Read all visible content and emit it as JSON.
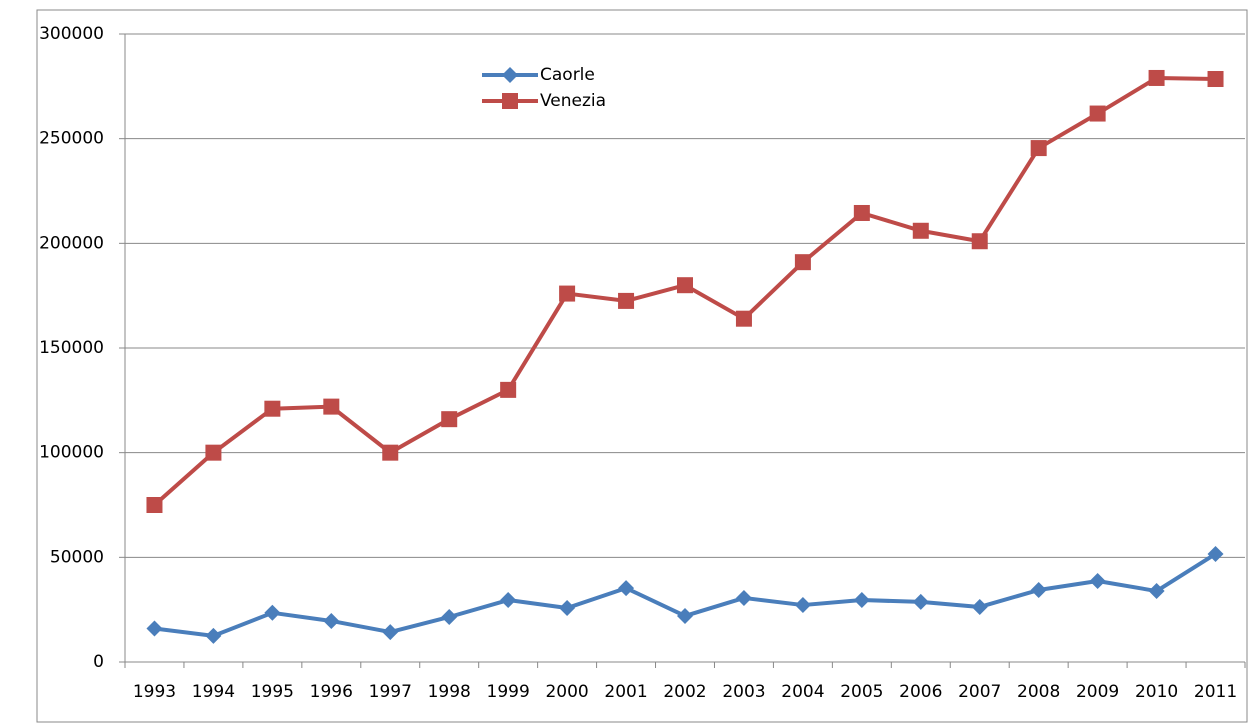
{
  "chart_data": {
    "type": "line",
    "categories": [
      "1993",
      "1994",
      "1995",
      "1996",
      "1997",
      "1998",
      "1999",
      "2000",
      "2001",
      "2002",
      "2003",
      "2004",
      "2005",
      "2006",
      "2007",
      "2008",
      "2009",
      "2010",
      "2011"
    ],
    "series": [
      {
        "name": "Caorle",
        "color": "#4a7ebb",
        "marker": "diamond",
        "values": [
          16000,
          12500,
          23500,
          19600,
          14300,
          21500,
          29600,
          25800,
          35300,
          22000,
          30600,
          27200,
          29600,
          28700,
          26300,
          34400,
          38700,
          33900,
          51600
        ]
      },
      {
        "name": "Venezia",
        "color": "#be4b48",
        "marker": "square",
        "values": [
          75000,
          100000,
          121000,
          122000,
          100000,
          116000,
          130000,
          176000,
          172500,
          180000,
          164000,
          191000,
          214500,
          206000,
          201000,
          245500,
          262000,
          279000,
          278500
        ]
      }
    ],
    "ylim": [
      0,
      300000
    ],
    "yticks": [
      0,
      50000,
      100000,
      150000,
      200000,
      250000,
      300000
    ],
    "grid": true,
    "legend": "top"
  }
}
